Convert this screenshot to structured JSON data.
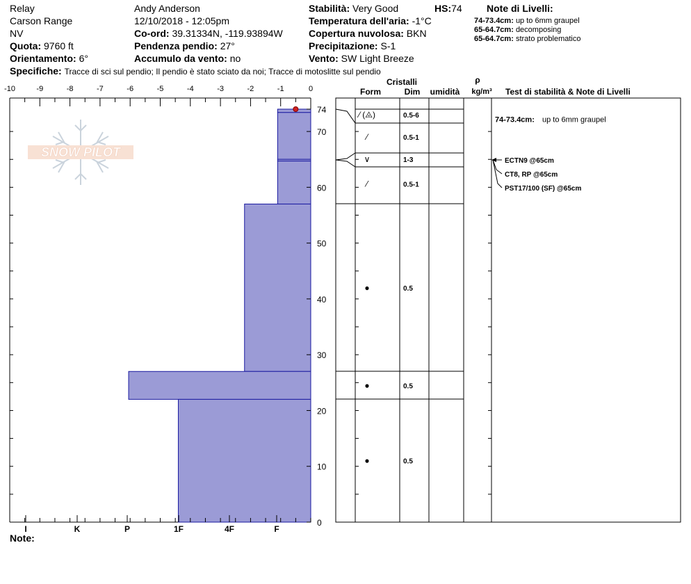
{
  "header": {
    "location": "Relay",
    "range": "Carson Range",
    "state": "NV",
    "elevation_label": "Quota:",
    "elevation_value": "9760 ft",
    "aspect_label": "Orientamento:",
    "aspect_value": "6°",
    "observer": "Andy Anderson",
    "datetime": "12/10/2018 - 12:05pm",
    "coord_label": "Co-ord:",
    "coord_value": "39.31334N, -119.93894W",
    "slope_label": "Pendenza pendio:",
    "slope_value": "27°",
    "wind_load_label": "Accumulo da vento:",
    "wind_load_value": "no",
    "stability_label": "Stabilità:",
    "stability_value": "Very Good",
    "hs_label": "HS:",
    "hs_value": "74",
    "air_temp_label": "Temperatura dell'aria:",
    "air_temp_value": "-1°C",
    "cloud_label": "Copertura nuvolosa:",
    "cloud_value": "BKN",
    "precip_label": "Precipitazione:",
    "precip_value": "S-1",
    "wind_label": "Vento:",
    "wind_value": "SW Light Breeze",
    "specifics_label": "Specifiche:",
    "specifics_value": "Tracce di sci sul pendio;  Il pendio è stato sciato da noi;  Tracce di motoslitte sul pendio",
    "layer_notes_title": "Note di Livelli:",
    "layer_notes": [
      {
        "range": "74-73.4cm:",
        "text": "up to 6mm graupel"
      },
      {
        "range": "65-64.7cm:",
        "text": "decomposing"
      },
      {
        "range": "65-64.7cm:",
        "text": "strato problematico"
      }
    ]
  },
  "logo_text": "SNOW PILOT",
  "footer": {
    "notes_label": "Note:"
  },
  "chart_data": {
    "type": "bar",
    "subtype": "snow-hardness-profile",
    "temp_axis": {
      "ticks": [
        "-10",
        "-9",
        "-8",
        "-7",
        "-6",
        "-5",
        "-4",
        "-3",
        "-2",
        "-1",
        "0"
      ],
      "range": [
        -10,
        0
      ]
    },
    "hardness_axis": {
      "ticks": [
        "I",
        "K",
        "P",
        "1F",
        "4F",
        "F"
      ]
    },
    "depth_axis": {
      "ticks": [
        "74",
        "70",
        "60",
        "50",
        "40",
        "30",
        "20",
        "10",
        "0"
      ],
      "range": [
        0,
        74
      ]
    },
    "surface_temp": {
      "depth": 74,
      "temp": -0.5
    },
    "layers": [
      {
        "top": 74,
        "bottom": 73.4,
        "hardness": -1.1
      },
      {
        "top": 73.4,
        "bottom": 65,
        "hardness": -1.1
      },
      {
        "top": 65,
        "bottom": 64.7,
        "hardness": -1.1
      },
      {
        "top": 64.7,
        "bottom": 57,
        "hardness": -1.1
      },
      {
        "top": 57,
        "bottom": 27,
        "hardness": -2.2
      },
      {
        "top": 27,
        "bottom": 22,
        "hardness": -6.05
      },
      {
        "top": 22,
        "bottom": 0,
        "hardness": -4.4
      }
    ],
    "columns": {
      "crystals": "Cristalli",
      "form": "Form",
      "size": "Dim",
      "moisture": "umidità",
      "rho": "ρ",
      "density_unit": "kg/m³",
      "tests": "Test di stabilità & Note di Livelli"
    },
    "crystal_rows": [
      {
        "depth": 73,
        "form": "⁄ (⨻)",
        "size": "0.5-6"
      },
      {
        "depth": 69,
        "form": "⁄",
        "size": "0.5-1"
      },
      {
        "depth": 65,
        "form": "∨",
        "size": "1-3"
      },
      {
        "depth": 60.6,
        "form": "⁄",
        "size": "0.5-1"
      },
      {
        "depth": 42,
        "form": "●",
        "size": "0.5"
      },
      {
        "depth": 24.5,
        "form": "●",
        "size": "0.5"
      },
      {
        "depth": 11,
        "form": "●",
        "size": "0.5"
      }
    ],
    "layer_notes_col": [
      {
        "range": "74-73.4cm:",
        "text": "up to 6mm graupel",
        "depth": 72.2
      }
    ],
    "stability_tests": [
      {
        "text": "ECTN9 @65cm",
        "depth": 65
      },
      {
        "text": "CT8, RP @65cm",
        "depth": 65
      },
      {
        "text": "PST17/100 (SF) @65cm",
        "depth": 65
      }
    ]
  }
}
